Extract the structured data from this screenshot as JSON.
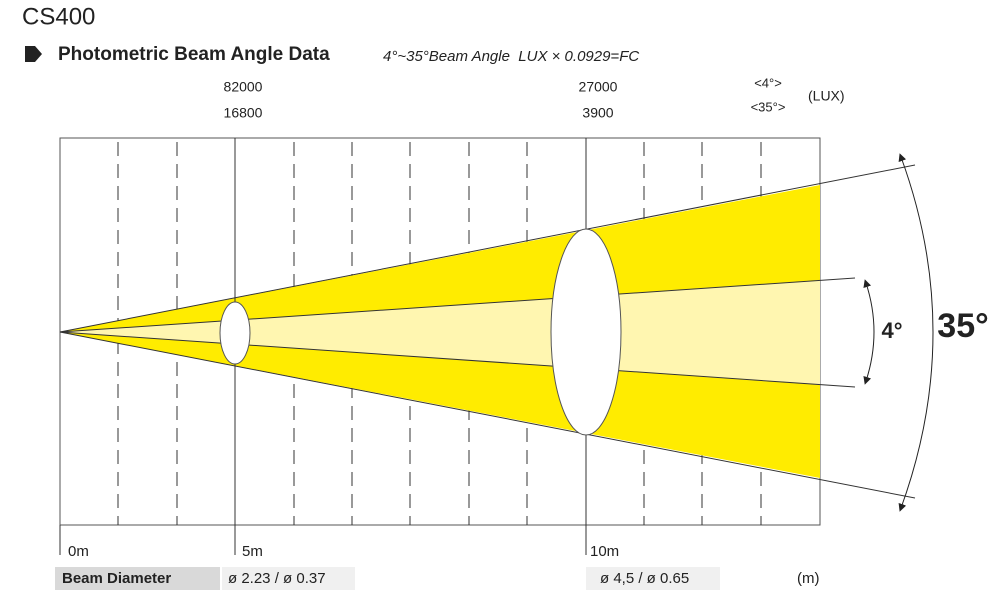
{
  "header": {
    "title": "CS400",
    "subtitle": "Photometric Beam Angle Data",
    "note": "4°~35°Beam Angle  LUX × 0.0929=FC"
  },
  "lux": {
    "legend": [
      "<4°>",
      "<35°>"
    ],
    "unit": "(LUX)",
    "points": [
      {
        "narrow": "82000",
        "wide": "16800"
      },
      {
        "narrow": "27000",
        "wide": "3900"
      }
    ]
  },
  "distances": [
    "0m",
    "5m",
    "10m"
  ],
  "angles": {
    "narrow": "4°",
    "wide": "35°"
  },
  "footer": {
    "label": "Beam Diameter",
    "diameters": [
      "ø 2.23 / ø 0.37",
      "ø 4,5 / ø 0.65"
    ],
    "unit": "(m)"
  }
}
